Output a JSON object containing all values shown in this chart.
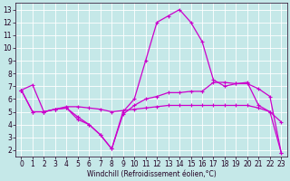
{
  "title": "",
  "xlabel": "Windchill (Refroidissement éolien,°C)",
  "ylabel": "",
  "bg_color": "#c5e8e8",
  "grid_color": "#ffffff",
  "line_color": "#cc00cc",
  "xlim": [
    -0.5,
    23.5
  ],
  "ylim": [
    1.5,
    13.5
  ],
  "xticks": [
    0,
    1,
    2,
    3,
    4,
    5,
    6,
    7,
    8,
    9,
    10,
    11,
    12,
    13,
    14,
    15,
    16,
    17,
    18,
    19,
    20,
    21,
    22,
    23
  ],
  "yticks": [
    2,
    3,
    4,
    5,
    6,
    7,
    8,
    9,
    10,
    11,
    12,
    13
  ],
  "line1_x": [
    0,
    1,
    2,
    3,
    4,
    5,
    6,
    7,
    8,
    9,
    10,
    11,
    12,
    13,
    14,
    15,
    16,
    17,
    18,
    19,
    20,
    21,
    22,
    23
  ],
  "line1_y": [
    6.7,
    7.1,
    5.0,
    5.2,
    5.3,
    4.6,
    4.0,
    3.2,
    2.1,
    5.0,
    6.0,
    9.0,
    12.0,
    12.5,
    13.0,
    12.0,
    10.5,
    7.5,
    7.0,
    7.2,
    7.3,
    5.5,
    5.0,
    4.2
  ],
  "line2_x": [
    0,
    1,
    2,
    3,
    4,
    5,
    6,
    7,
    8,
    9,
    10,
    11,
    12,
    13,
    14,
    15,
    16,
    17,
    18,
    19,
    20,
    21,
    22,
    23
  ],
  "line2_y": [
    6.7,
    5.0,
    5.0,
    5.2,
    5.4,
    5.4,
    5.3,
    5.2,
    5.0,
    5.1,
    5.2,
    5.3,
    5.4,
    5.5,
    5.5,
    5.5,
    5.5,
    5.5,
    5.5,
    5.5,
    5.5,
    5.3,
    5.0,
    1.8
  ],
  "line3_x": [
    0,
    1,
    2,
    3,
    4,
    5,
    6,
    7,
    8,
    9,
    10,
    11,
    12,
    13,
    14,
    15,
    16,
    17,
    18,
    19,
    20,
    21,
    22,
    23
  ],
  "line3_y": [
    6.7,
    5.0,
    5.0,
    5.2,
    5.3,
    4.4,
    4.0,
    3.2,
    2.1,
    4.8,
    5.5,
    6.0,
    6.2,
    6.5,
    6.5,
    6.6,
    6.6,
    7.3,
    7.3,
    7.2,
    7.2,
    6.8,
    6.2,
    1.8
  ],
  "tick_fontsize": 5.5,
  "xlabel_fontsize": 5.5,
  "tick_color": "#220022",
  "spine_color": "#220022"
}
